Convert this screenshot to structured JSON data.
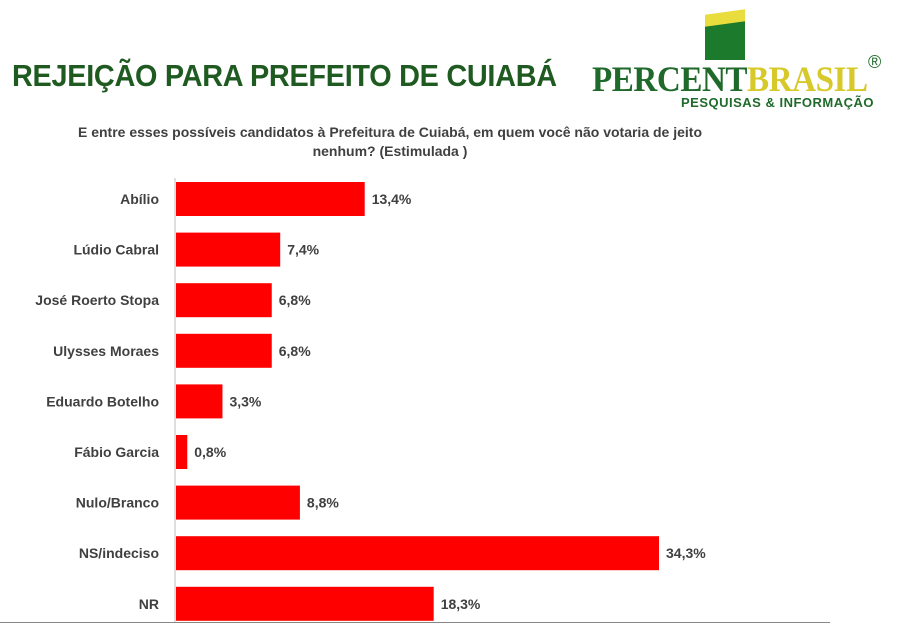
{
  "title": "REJEIÇÃO PARA PREFEITO DE CUIABÁ",
  "subtitle": "E entre esses possíveis candidatos à Prefeitura de Cuiabá, em quem você não votaria de jeito nenhum? (Estimulada )",
  "logo": {
    "word_part1": "PERCENT",
    "word_part2": "BRASIL",
    "registered": "®",
    "tagline": "PESQUISAS & INFORMAÇÃO"
  },
  "colors": {
    "bar": "#ff0000",
    "title": "#1f5a21",
    "label": "#404040"
  },
  "chart_data": {
    "type": "bar",
    "orientation": "horizontal",
    "categories": [
      "Abílio",
      "Lúdio Cabral",
      "José Roerto Stopa",
      "Ulysses Moraes",
      "Eduardo Botelho",
      "Fábio Garcia",
      "Nulo/Branco",
      "NS/indeciso",
      "NR"
    ],
    "values": [
      13.4,
      7.4,
      6.8,
      6.8,
      3.3,
      0.8,
      8.8,
      34.3,
      18.3
    ],
    "value_labels": [
      "13,4%",
      "7,4%",
      "6,8%",
      "6,8%",
      "3,3%",
      "0,8%",
      "8,8%",
      "34,3%",
      "18,3%"
    ],
    "grid": false,
    "legend": "none"
  }
}
